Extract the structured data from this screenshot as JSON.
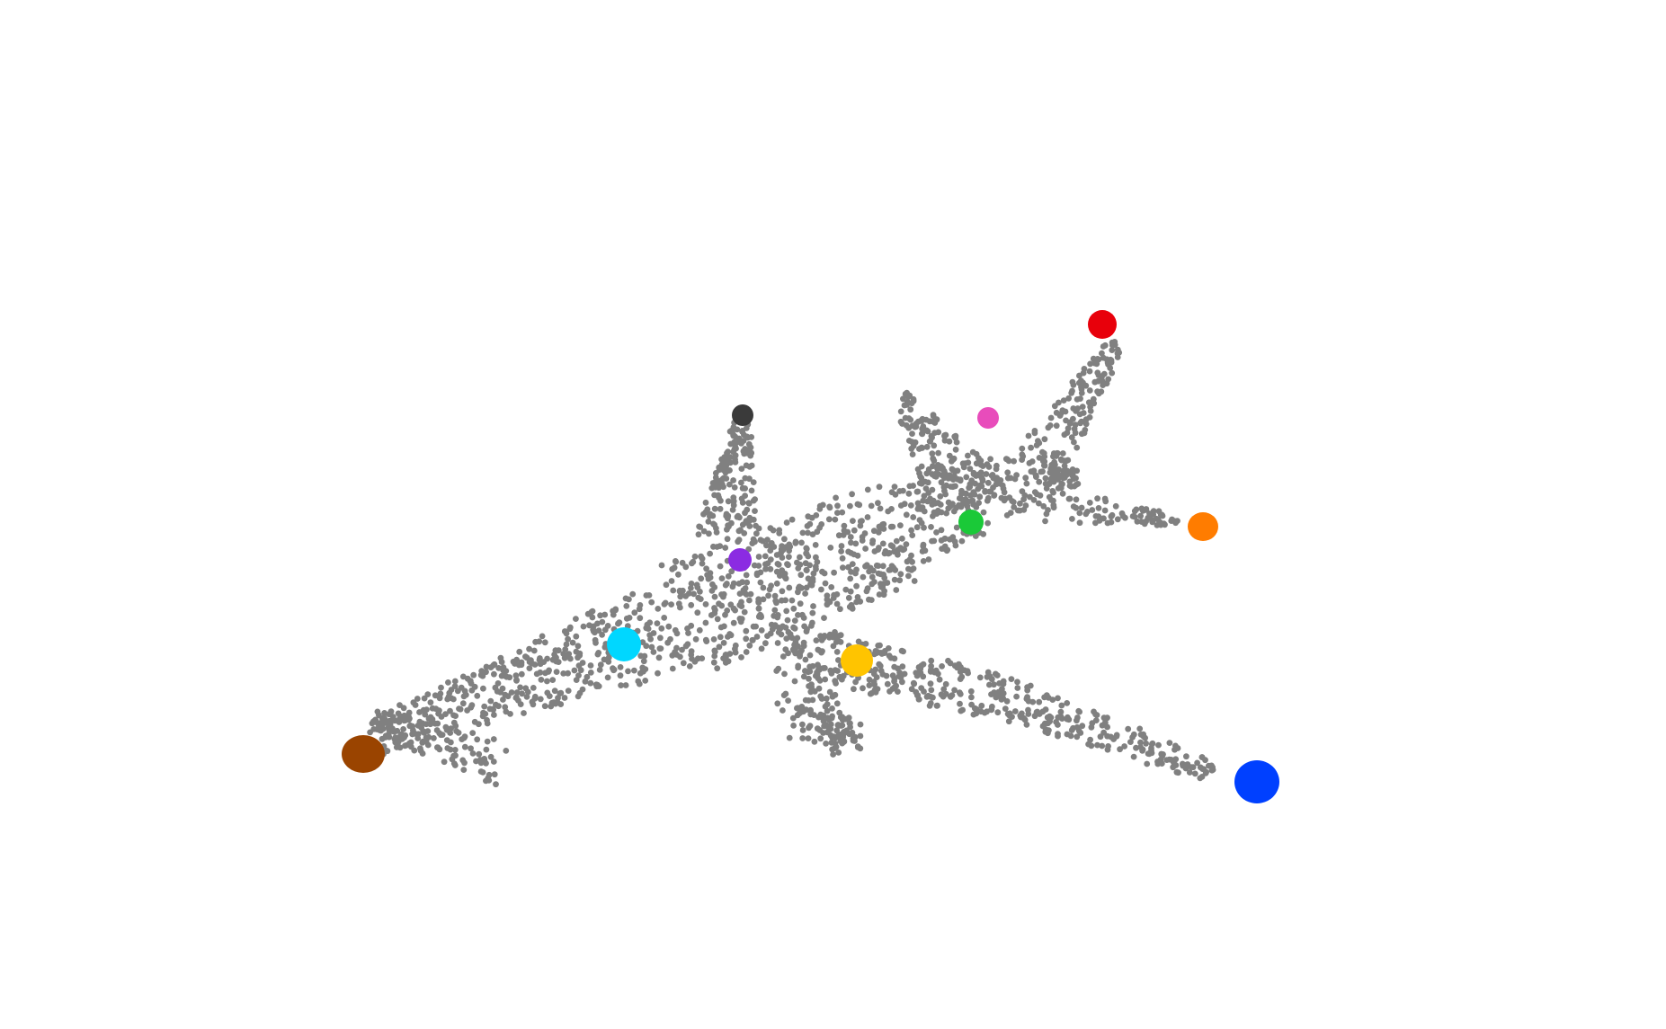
{
  "figure": {
    "point_color": "#808080",
    "background": "#ffffff"
  },
  "keypoints": [
    {
      "part": "nose",
      "color": "#9a4400"
    },
    {
      "part": "left-wingtip",
      "color": "#0040ff"
    },
    {
      "part": "right-wingtip",
      "color": "#e8000b"
    },
    {
      "part": "tail-top",
      "color": "#3a3a3a"
    },
    {
      "part": "tail-stabilizer-tip",
      "color": "#ff7c00"
    },
    {
      "part": "fuselage-front",
      "color": "#00d7ff"
    },
    {
      "part": "fuselage-center",
      "color": "#8b2be2"
    },
    {
      "part": "left-wing-root",
      "color": "#ffc400"
    },
    {
      "part": "right-wing-root",
      "color": "#1ac938"
    },
    {
      "part": "right-wing-mid",
      "color": "#e84cbb"
    }
  ]
}
